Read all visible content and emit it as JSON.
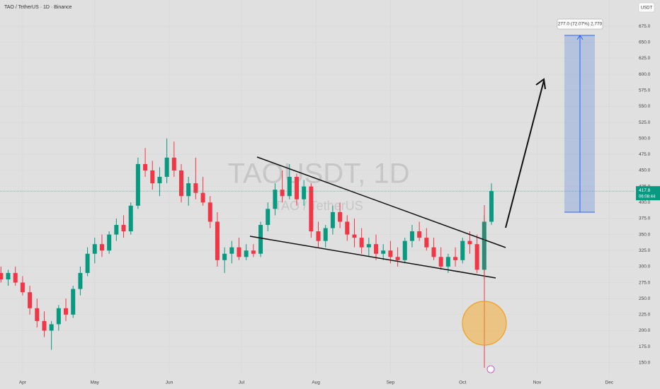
{
  "chart_data": {
    "type": "candlestick",
    "title": "TAO / TetherUS · 1D · Binance",
    "watermark": "TAOUSDT, 1D",
    "watermark_subtitle": "TAO / TetherUS",
    "currency": "USDT",
    "last_price": 417.8,
    "countdown": "06:08:44",
    "measure_label": "277.0 (72.07%) 2,770",
    "up_color": "#089981",
    "down_color": "#f23645",
    "x": [
      -9,
      -6,
      -3,
      0,
      3,
      6,
      9,
      12,
      15,
      18,
      21,
      24,
      27,
      30,
      33,
      36,
      39,
      42,
      45,
      48,
      51,
      54,
      57,
      60,
      63,
      66,
      69,
      72,
      75,
      78,
      81,
      84,
      87,
      90,
      93,
      96,
      99,
      102,
      105,
      108,
      111,
      114,
      117,
      120,
      123,
      126,
      129,
      132,
      135,
      138,
      141,
      144,
      147,
      150,
      153,
      156,
      159,
      162,
      165,
      168,
      171,
      174,
      177,
      180,
      183,
      186,
      189,
      192,
      195
    ],
    "open": [
      290,
      280,
      290,
      275,
      260,
      235,
      215,
      200,
      210,
      235,
      225,
      265,
      290,
      320,
      335,
      325,
      350,
      365,
      355,
      395,
      460,
      450,
      430,
      440,
      470,
      450,
      410,
      430,
      415,
      400,
      370,
      310,
      320,
      330,
      315,
      325,
      320,
      365,
      390,
      420,
      410,
      440,
      405,
      425,
      355,
      340,
      360,
      385,
      370,
      350,
      345,
      330,
      335,
      320,
      325,
      315,
      310,
      340,
      355,
      345,
      330,
      315,
      300,
      315,
      310,
      340,
      335,
      295,
      370
    ],
    "high": [
      300,
      295,
      300,
      285,
      270,
      250,
      230,
      215,
      240,
      250,
      270,
      300,
      330,
      345,
      350,
      355,
      375,
      380,
      400,
      470,
      485,
      465,
      455,
      500,
      495,
      460,
      440,
      470,
      440,
      410,
      385,
      330,
      340,
      345,
      335,
      335,
      370,
      400,
      430,
      450,
      460,
      445,
      435,
      430,
      370,
      365,
      395,
      400,
      380,
      375,
      360,
      345,
      350,
      335,
      340,
      330,
      345,
      365,
      370,
      360,
      345,
      330,
      320,
      330,
      345,
      355,
      350,
      380,
      430
    ],
    "low": [
      275,
      270,
      270,
      255,
      225,
      205,
      190,
      170,
      200,
      215,
      220,
      255,
      285,
      305,
      315,
      320,
      340,
      345,
      350,
      390,
      440,
      420,
      410,
      430,
      440,
      400,
      395,
      405,
      395,
      360,
      300,
      290,
      305,
      310,
      310,
      315,
      315,
      355,
      380,
      400,
      405,
      395,
      395,
      345,
      330,
      330,
      350,
      360,
      340,
      330,
      320,
      315,
      310,
      310,
      305,
      300,
      305,
      330,
      340,
      325,
      310,
      295,
      290,
      300,
      305,
      320,
      290,
      280,
      365
    ],
    "close": [
      280,
      290,
      275,
      260,
      235,
      215,
      200,
      210,
      235,
      225,
      265,
      290,
      320,
      335,
      325,
      350,
      365,
      355,
      395,
      460,
      450,
      430,
      440,
      470,
      450,
      410,
      430,
      415,
      400,
      370,
      310,
      320,
      330,
      315,
      325,
      320,
      365,
      390,
      420,
      410,
      440,
      405,
      425,
      355,
      340,
      360,
      385,
      370,
      350,
      345,
      330,
      335,
      320,
      325,
      315,
      310,
      340,
      355,
      345,
      330,
      315,
      300,
      315,
      310,
      340,
      335,
      295,
      370,
      417.8
    ],
    "xlim": [
      -9.4,
      254.5
    ],
    "ylim": [
      131,
      716
    ],
    "xticks": [
      {
        "value": 0,
        "label": "Apr"
      },
      {
        "value": 30,
        "label": "May"
      },
      {
        "value": 61,
        "label": "Jun"
      },
      {
        "value": 91,
        "label": "Jul"
      },
      {
        "value": 122,
        "label": "Aug"
      },
      {
        "value": 153,
        "label": "Sep"
      },
      {
        "value": 183,
        "label": "Oct"
      },
      {
        "value": 214,
        "label": "Nov"
      },
      {
        "value": 244,
        "label": "Dec"
      }
    ],
    "yticks": [
      {
        "value": 150,
        "label": "150.0"
      },
      {
        "value": 175,
        "label": "175.0"
      },
      {
        "value": 200,
        "label": "200.0"
      },
      {
        "value": 225,
        "label": "225.0"
      },
      {
        "value": 250,
        "label": "250.0"
      },
      {
        "value": 275,
        "label": "275.0"
      },
      {
        "value": 300,
        "label": "300.0"
      },
      {
        "value": 325,
        "label": "325.0"
      },
      {
        "value": 350,
        "label": "350.0"
      },
      {
        "value": 375,
        "label": "375.0"
      },
      {
        "value": 400,
        "label": "400.0"
      },
      {
        "value": 425,
        "label": "425.0"
      },
      {
        "value": 450,
        "label": "450.0"
      },
      {
        "value": 475,
        "label": "475.0"
      },
      {
        "value": 500,
        "label": "500.0"
      },
      {
        "value": 525,
        "label": "525.0"
      },
      {
        "value": 550,
        "label": "550.0"
      },
      {
        "value": 575,
        "label": "575.0"
      },
      {
        "value": 600,
        "label": "600.0"
      },
      {
        "value": 625,
        "label": "625.0"
      },
      {
        "value": 650,
        "label": "650.0"
      },
      {
        "value": 675,
        "label": "675.0"
      }
    ]
  }
}
